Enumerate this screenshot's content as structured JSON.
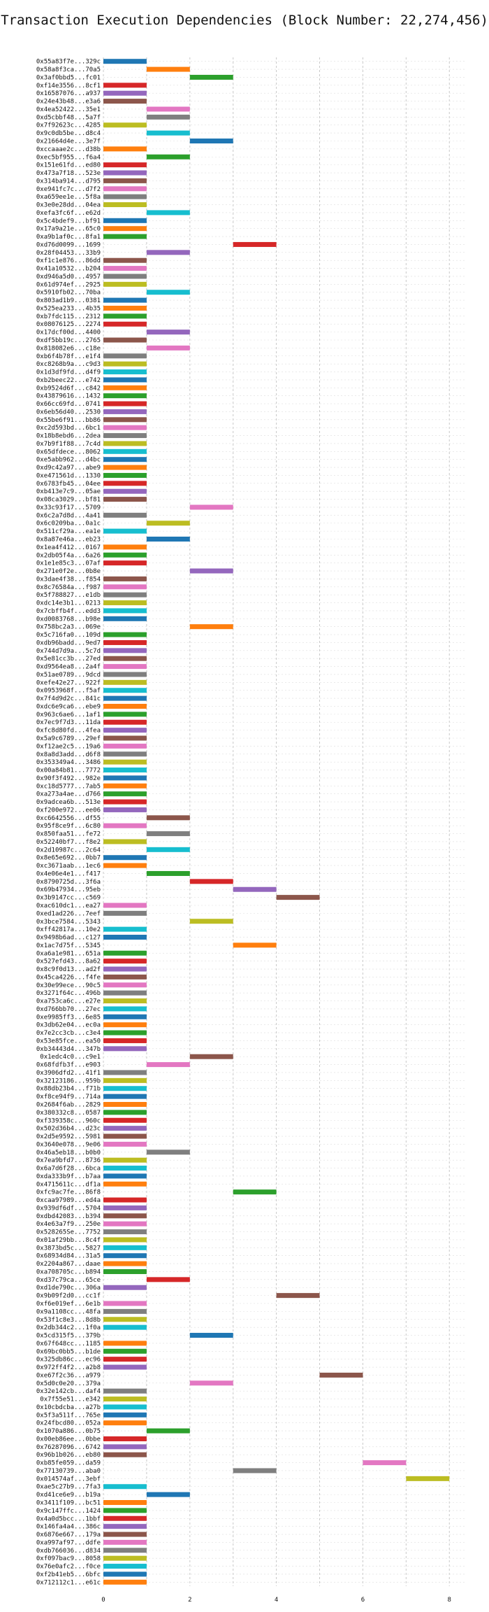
{
  "chart_data": {
    "type": "bar",
    "orientation": "horizontal",
    "title": "Transaction Execution Dependencies (Block Number: 22,274,456)",
    "xlabel": "",
    "ylabel": "",
    "xlim": [
      0,
      8.4
    ],
    "xticks": [
      0,
      2,
      4,
      6,
      8
    ],
    "grid": true,
    "palette": [
      "#1f77b4",
      "#ff7f0e",
      "#2ca02c",
      "#d62728",
      "#9467bd",
      "#8c564b",
      "#e377c2",
      "#7f7f7f",
      "#bcbd22",
      "#17becf"
    ],
    "bars": [
      {
        "label": "0x55a83f7e...329c",
        "start": 0,
        "end": 1
      },
      {
        "label": "0x58a8f3ca...70a5",
        "start": 1,
        "end": 2
      },
      {
        "label": "0x3af0bbd5...fc01",
        "start": 2,
        "end": 3
      },
      {
        "label": "0xf14e3556...8cf1",
        "start": 0,
        "end": 1
      },
      {
        "label": "0x16587076...a937",
        "start": 0,
        "end": 1
      },
      {
        "label": "0x24e43b48...e3a6",
        "start": 0,
        "end": 1
      },
      {
        "label": "0x4ea52422...35e1",
        "start": 1,
        "end": 2
      },
      {
        "label": "0xd5cbbf48...5a7f",
        "start": 1,
        "end": 2
      },
      {
        "label": "0x7f92623c...4285",
        "start": 0,
        "end": 1
      },
      {
        "label": "0x9c0db5be...d8c4",
        "start": 1,
        "end": 2
      },
      {
        "label": "0x21664d4e...3e7f",
        "start": 2,
        "end": 3
      },
      {
        "label": "0xccaaae2c...d38b",
        "start": 0,
        "end": 1
      },
      {
        "label": "0xec5bf955...f6a4",
        "start": 1,
        "end": 2
      },
      {
        "label": "0x151e61fd...ed80",
        "start": 0,
        "end": 1
      },
      {
        "label": "0x473a7f18...523e",
        "start": 0,
        "end": 1
      },
      {
        "label": "0x314ba914...d795",
        "start": 0,
        "end": 1
      },
      {
        "label": "0xe941fc7c...d7f2",
        "start": 0,
        "end": 1
      },
      {
        "label": "0xa659ee1e...5f8a",
        "start": 0,
        "end": 1
      },
      {
        "label": "0x3e0e28dd...04ea",
        "start": 0,
        "end": 1
      },
      {
        "label": "0xefa3fc6f...e62d",
        "start": 1,
        "end": 2
      },
      {
        "label": "0x5c4bdef9...bf91",
        "start": 0,
        "end": 1
      },
      {
        "label": "0x17a9a21e...65c0",
        "start": 0,
        "end": 1
      },
      {
        "label": "0xa9b1af0c...8fa1",
        "start": 0,
        "end": 1
      },
      {
        "label": "0xd76d0099...1699",
        "start": 3,
        "end": 4
      },
      {
        "label": "0x28f04453...33b9",
        "start": 1,
        "end": 2
      },
      {
        "label": "0xf1c1e876...86dd",
        "start": 0,
        "end": 1
      },
      {
        "label": "0x41a10532...b204",
        "start": 0,
        "end": 1
      },
      {
        "label": "0xd946a5d0...4957",
        "start": 0,
        "end": 1
      },
      {
        "label": "0x61d974ef...2925",
        "start": 0,
        "end": 1
      },
      {
        "label": "0x5910fb02...70ba",
        "start": 1,
        "end": 2
      },
      {
        "label": "0x803ad1b9...0381",
        "start": 0,
        "end": 1
      },
      {
        "label": "0x525ea233...4b35",
        "start": 0,
        "end": 1
      },
      {
        "label": "0xb7fdc115...2312",
        "start": 0,
        "end": 1
      },
      {
        "label": "0x08076125...2274",
        "start": 0,
        "end": 1
      },
      {
        "label": "0x17dcf00d...4400",
        "start": 1,
        "end": 2
      },
      {
        "label": "0xdf5bb19c...2765",
        "start": 0,
        "end": 1
      },
      {
        "label": "0x818082e6...c18e",
        "start": 1,
        "end": 2
      },
      {
        "label": "0xb6f4b78f...e1f4",
        "start": 0,
        "end": 1
      },
      {
        "label": "0xc8268b9a...c9d3",
        "start": 0,
        "end": 1
      },
      {
        "label": "0x1d3df9fd...d4f9",
        "start": 0,
        "end": 1
      },
      {
        "label": "0xb2beec22...e742",
        "start": 0,
        "end": 1
      },
      {
        "label": "0xb9524d6f...c842",
        "start": 0,
        "end": 1
      },
      {
        "label": "0x43879616...1432",
        "start": 0,
        "end": 1
      },
      {
        "label": "0x66cc69fd...0741",
        "start": 0,
        "end": 1
      },
      {
        "label": "0x6eb56d40...2530",
        "start": 0,
        "end": 1
      },
      {
        "label": "0x55be6f91...bb86",
        "start": 0,
        "end": 1
      },
      {
        "label": "0xc2d593bd...6bc1",
        "start": 0,
        "end": 1
      },
      {
        "label": "0x18b8ebd6...2dea",
        "start": 0,
        "end": 1
      },
      {
        "label": "0x7b9f1f88...7c4d",
        "start": 0,
        "end": 1
      },
      {
        "label": "0x65dfdece...8062",
        "start": 0,
        "end": 1
      },
      {
        "label": "0xe5abb962...d4bc",
        "start": 0,
        "end": 1
      },
      {
        "label": "0xd9c42a97...abe9",
        "start": 0,
        "end": 1
      },
      {
        "label": "0xe471561d...1330",
        "start": 0,
        "end": 1
      },
      {
        "label": "0x6783fb45...04ee",
        "start": 0,
        "end": 1
      },
      {
        "label": "0xb413e7c9...05ae",
        "start": 0,
        "end": 1
      },
      {
        "label": "0x08ca3029...bf81",
        "start": 0,
        "end": 1
      },
      {
        "label": "0x33c93f17...5709",
        "start": 2,
        "end": 3
      },
      {
        "label": "0x6c2a7d8d...4a41",
        "start": 0,
        "end": 1
      },
      {
        "label": "0x6c0209ba...0a1c",
        "start": 1,
        "end": 2
      },
      {
        "label": "0x511cf29a...ea1e",
        "start": 0,
        "end": 1
      },
      {
        "label": "0x8a87e46a...eb23",
        "start": 1,
        "end": 2
      },
      {
        "label": "0x1ea4f412...0167",
        "start": 0,
        "end": 1
      },
      {
        "label": "0x2db05f4a...6a26",
        "start": 0,
        "end": 1
      },
      {
        "label": "0x1e1e85c3...07af",
        "start": 0,
        "end": 1
      },
      {
        "label": "0x271e0f2e...0b8e",
        "start": 2,
        "end": 3
      },
      {
        "label": "0x3dae4f38...f854",
        "start": 0,
        "end": 1
      },
      {
        "label": "0x8c76584a...f987",
        "start": 0,
        "end": 1
      },
      {
        "label": "0x5f788827...e1db",
        "start": 0,
        "end": 1
      },
      {
        "label": "0xdc14e3b1...0213",
        "start": 0,
        "end": 1
      },
      {
        "label": "0x7cbffb4f...edd3",
        "start": 0,
        "end": 1
      },
      {
        "label": "0xd0083768...b98e",
        "start": 0,
        "end": 1
      },
      {
        "label": "0x758bc2a3...069e",
        "start": 2,
        "end": 3
      },
      {
        "label": "0x5c716fa0...109d",
        "start": 0,
        "end": 1
      },
      {
        "label": "0xdb96badd...9ed7",
        "start": 0,
        "end": 1
      },
      {
        "label": "0x744d7d9a...5c7d",
        "start": 0,
        "end": 1
      },
      {
        "label": "0x5e81cc3b...27ed",
        "start": 0,
        "end": 1
      },
      {
        "label": "0xd9564ea8...2a4f",
        "start": 0,
        "end": 1
      },
      {
        "label": "0x51ae0789...9dcd",
        "start": 0,
        "end": 1
      },
      {
        "label": "0xefe42e27...922f",
        "start": 0,
        "end": 1
      },
      {
        "label": "0x0953968f...f5af",
        "start": 0,
        "end": 1
      },
      {
        "label": "0x7f4d9d2c...841c",
        "start": 0,
        "end": 1
      },
      {
        "label": "0xdc6e9ca6...ebe9",
        "start": 0,
        "end": 1
      },
      {
        "label": "0x963c6ae6...1af1",
        "start": 0,
        "end": 1
      },
      {
        "label": "0x7ec9f7d3...11da",
        "start": 0,
        "end": 1
      },
      {
        "label": "0xfc8d80fd...4fea",
        "start": 0,
        "end": 1
      },
      {
        "label": "0x5a9c6789...29ef",
        "start": 0,
        "end": 1
      },
      {
        "label": "0xf12ae2c5...19a6",
        "start": 0,
        "end": 1
      },
      {
        "label": "0x8a8d3add...d6f8",
        "start": 0,
        "end": 1
      },
      {
        "label": "0x353349a4...3486",
        "start": 0,
        "end": 1
      },
      {
        "label": "0x00a84b81...7772",
        "start": 0,
        "end": 1
      },
      {
        "label": "0x90f3f492...982e",
        "start": 0,
        "end": 1
      },
      {
        "label": "0xc18d5777...7ab5",
        "start": 0,
        "end": 1
      },
      {
        "label": "0xa273a4ae...d766",
        "start": 0,
        "end": 1
      },
      {
        "label": "0x9adcea6b...513e",
        "start": 0,
        "end": 1
      },
      {
        "label": "0xf200e972...ee06",
        "start": 0,
        "end": 1
      },
      {
        "label": "0xc6642556...df55",
        "start": 1,
        "end": 2
      },
      {
        "label": "0x95f8ce9f...6c80",
        "start": 0,
        "end": 1
      },
      {
        "label": "0x850faa51...fe72",
        "start": 1,
        "end": 2
      },
      {
        "label": "0x52240bf7...f8e2",
        "start": 0,
        "end": 1
      },
      {
        "label": "0x2d10987c...2c64",
        "start": 1,
        "end": 2
      },
      {
        "label": "0x8e65e692...0bb7",
        "start": 0,
        "end": 1
      },
      {
        "label": "0xc3671aab...1ec6",
        "start": 0,
        "end": 1
      },
      {
        "label": "0x4e06e4e1...f417",
        "start": 1,
        "end": 2
      },
      {
        "label": "0x8790725d...3f6a",
        "start": 2,
        "end": 3
      },
      {
        "label": "0x69b47934...95eb",
        "start": 3,
        "end": 4
      },
      {
        "label": "0x3b9147cc...c569",
        "start": 4,
        "end": 5
      },
      {
        "label": "0xac610dc1...ea27",
        "start": 0,
        "end": 1
      },
      {
        "label": "0xed1ad226...7eef",
        "start": 0,
        "end": 1
      },
      {
        "label": "0x3bce7584...5343",
        "start": 2,
        "end": 3
      },
      {
        "label": "0xff42817a...10e2",
        "start": 0,
        "end": 1
      },
      {
        "label": "0x9498b6ad...c127",
        "start": 0,
        "end": 1
      },
      {
        "label": "0x1ac7d75f...5345",
        "start": 3,
        "end": 4
      },
      {
        "label": "0xa6a1e981...651a",
        "start": 0,
        "end": 1
      },
      {
        "label": "0x527efd43...8a62",
        "start": 0,
        "end": 1
      },
      {
        "label": "0x8c9f0d13...ad2f",
        "start": 0,
        "end": 1
      },
      {
        "label": "0x45ca4226...f4fe",
        "start": 0,
        "end": 1
      },
      {
        "label": "0x30e99ece...90c5",
        "start": 0,
        "end": 1
      },
      {
        "label": "0x3271f64c...496b",
        "start": 0,
        "end": 1
      },
      {
        "label": "0xa753ca6c...e27e",
        "start": 0,
        "end": 1
      },
      {
        "label": "0xd766bb70...27ec",
        "start": 0,
        "end": 1
      },
      {
        "label": "0xe9985ff3...6e85",
        "start": 0,
        "end": 1
      },
      {
        "label": "0x3db62e04...ec0a",
        "start": 0,
        "end": 1
      },
      {
        "label": "0x7e2cc3cb...c3e4",
        "start": 0,
        "end": 1
      },
      {
        "label": "0x53e85fce...ea50",
        "start": 0,
        "end": 1
      },
      {
        "label": "0xb34443d4...347b",
        "start": 0,
        "end": 1
      },
      {
        "label": "0x1edc4c0...c9e1",
        "start": 2,
        "end": 3
      },
      {
        "label": "0x68fdfb3f...e903",
        "start": 1,
        "end": 2
      },
      {
        "label": "0x3906dfd2...41f1",
        "start": 0,
        "end": 1
      },
      {
        "label": "0x32123186...959b",
        "start": 0,
        "end": 1
      },
      {
        "label": "0x88db23b4...f71b",
        "start": 0,
        "end": 1
      },
      {
        "label": "0xf8ce94f9...714a",
        "start": 0,
        "end": 1
      },
      {
        "label": "0x2684f6ab...2829",
        "start": 0,
        "end": 1
      },
      {
        "label": "0x380332c8...0587",
        "start": 0,
        "end": 1
      },
      {
        "label": "0xf339358c...960c",
        "start": 0,
        "end": 1
      },
      {
        "label": "0x502d36b4...d23c",
        "start": 0,
        "end": 1
      },
      {
        "label": "0x2d5e9592...5981",
        "start": 0,
        "end": 1
      },
      {
        "label": "0x3640e078...9e06",
        "start": 0,
        "end": 1
      },
      {
        "label": "0x46a5eb18...b0b0",
        "start": 1,
        "end": 2
      },
      {
        "label": "0x7ea9bfd7...8736",
        "start": 0,
        "end": 1
      },
      {
        "label": "0x6a7d6f28...6bca",
        "start": 0,
        "end": 1
      },
      {
        "label": "0xda333b9f...b7aa",
        "start": 0,
        "end": 1
      },
      {
        "label": "0x4715611c...df1a",
        "start": 0,
        "end": 1
      },
      {
        "label": "0xfc9ac7fe...86f8",
        "start": 3,
        "end": 4
      },
      {
        "label": "0xcaa97989...ed4a",
        "start": 0,
        "end": 1
      },
      {
        "label": "0x939df6df...5704",
        "start": 0,
        "end": 1
      },
      {
        "label": "0xdbd42083...b394",
        "start": 0,
        "end": 1
      },
      {
        "label": "0x4e63a7f9...250e",
        "start": 0,
        "end": 1
      },
      {
        "label": "0x528265Se...7752",
        "start": 0,
        "end": 1
      },
      {
        "label": "0x01af29bb...8c4f",
        "start": 0,
        "end": 1
      },
      {
        "label": "0x3873bd5c...5827",
        "start": 0,
        "end": 1
      },
      {
        "label": "0x68934d84...31a5",
        "start": 0,
        "end": 1
      },
      {
        "label": "0x2204a867...daae",
        "start": 0,
        "end": 1
      },
      {
        "label": "0xa708705c...b894",
        "start": 0,
        "end": 1
      },
      {
        "label": "0xd37c79ca...65ce",
        "start": 1,
        "end": 2
      },
      {
        "label": "0xd1de790c...306a",
        "start": 0,
        "end": 1
      },
      {
        "label": "0x9b09f2d0...cc1f",
        "start": 4,
        "end": 5
      },
      {
        "label": "0xf6e019ef...6e1b",
        "start": 0,
        "end": 1
      },
      {
        "label": "0x9a1108cc...48fa",
        "start": 0,
        "end": 1
      },
      {
        "label": "0x53f1c8e3...8d8b",
        "start": 0,
        "end": 1
      },
      {
        "label": "0x2db344c2...1f0a",
        "start": 0,
        "end": 1
      },
      {
        "label": "0x5cd315f5...379b",
        "start": 2,
        "end": 3
      },
      {
        "label": "0x67f648cc...1185",
        "start": 0,
        "end": 1
      },
      {
        "label": "0x69bc0bb5...b1de",
        "start": 0,
        "end": 1
      },
      {
        "label": "0x325db86c...ec96",
        "start": 0,
        "end": 1
      },
      {
        "label": "0x972ff4f2...a2b8",
        "start": 0,
        "end": 1
      },
      {
        "label": "0xe67f2c36...a979",
        "start": 5,
        "end": 6
      },
      {
        "label": "0x5d0c0e20...379a",
        "start": 2,
        "end": 3
      },
      {
        "label": "0x32e142cb...daf4",
        "start": 0,
        "end": 1
      },
      {
        "label": "0x7f55e51...e342",
        "start": 0,
        "end": 1
      },
      {
        "label": "0x10cbdcba...a27b",
        "start": 0,
        "end": 1
      },
      {
        "label": "0x5f3a511f...765e",
        "start": 0,
        "end": 1
      },
      {
        "label": "0x24fbcd80...052a",
        "start": 0,
        "end": 1
      },
      {
        "label": "0x1070a886...0b75",
        "start": 1,
        "end": 2
      },
      {
        "label": "0x00eb86ee...0bbe",
        "start": 0,
        "end": 1
      },
      {
        "label": "0x76287096...6742",
        "start": 0,
        "end": 1
      },
      {
        "label": "0x96b1b026...eb80",
        "start": 0,
        "end": 1
      },
      {
        "label": "0xb85fe059...da59",
        "start": 6,
        "end": 7
      },
      {
        "label": "0x77130739...aba0",
        "start": 3,
        "end": 4
      },
      {
        "label": "0x014574af...3ebf",
        "start": 7,
        "end": 8
      },
      {
        "label": "0xae5c27b9...7fa3",
        "start": 0,
        "end": 1
      },
      {
        "label": "0xd41ce6e9...b19a",
        "start": 1,
        "end": 2
      },
      {
        "label": "0x3411f109...bc51",
        "start": 0,
        "end": 1
      },
      {
        "label": "0x9c147ffc...1424",
        "start": 0,
        "end": 1
      },
      {
        "label": "0x4a0d5bcc...1bbf",
        "start": 0,
        "end": 1
      },
      {
        "label": "0x146fa4a4...386c",
        "start": 0,
        "end": 1
      },
      {
        "label": "0x6876e667...179a",
        "start": 0,
        "end": 1
      },
      {
        "label": "0xa997af97...ddfe",
        "start": 0,
        "end": 1
      },
      {
        "label": "0xdb766036...d834",
        "start": 0,
        "end": 1
      },
      {
        "label": "0xf097bac9...8058",
        "start": 0,
        "end": 1
      },
      {
        "label": "0x76e0afc2...f0ce",
        "start": 0,
        "end": 1
      },
      {
        "label": "0xf2b41eb5...6bfc",
        "start": 0,
        "end": 1
      },
      {
        "label": "0x712112c1...e61c",
        "start": 0,
        "end": 1
      }
    ]
  }
}
